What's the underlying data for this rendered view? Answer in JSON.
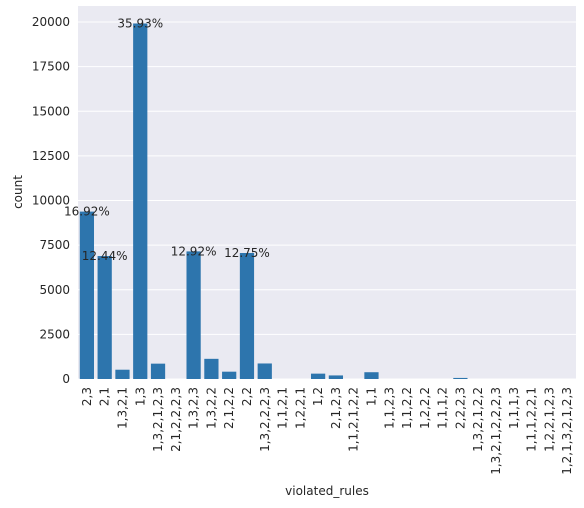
{
  "chart_data": {
    "type": "bar",
    "xlabel": "violated_rules",
    "ylabel": "count",
    "ylim": [
      0,
      20900
    ],
    "yticks": [
      0,
      2500,
      5000,
      7500,
      10000,
      12500,
      15000,
      17500,
      20000
    ],
    "grid": true,
    "bar_color": "#2d75ad",
    "background_color": "#eaeaf2",
    "categories": [
      "2,3",
      "2,1",
      "1,3,2,1",
      "1,3",
      "1,3,2,1,2,3",
      "2,1,2,2,2,3",
      "1,3,2,3",
      "1,3,2,2",
      "2,1,2,2",
      "2,2",
      "1,3,2,2,2,3",
      "1,1,2,1",
      "1,2,2,1",
      "1,2",
      "2,1,2,3",
      "1,1,2,1,2,2",
      "1,1",
      "1,1,2,3",
      "1,1,2,2",
      "1,2,2,2",
      "1,1,1,2",
      "2,2,2,3",
      "1,3,2,1,2,2",
      "1,3,2,1,2,2,2,3",
      "1,1,1,3",
      "1,1,1,2,2,1",
      "1,2,2,1,2,3",
      "1,2,1,3,2,1,2,3"
    ],
    "values": [
      9380,
      6890,
      520,
      19920,
      860,
      0,
      7150,
      1130,
      410,
      7060,
      870,
      0,
      0,
      300,
      200,
      0,
      380,
      0,
      0,
      0,
      0,
      60,
      0,
      0,
      0,
      0,
      0,
      0
    ],
    "labels": [
      "16.92%",
      "12.44%",
      "",
      "35.93%",
      "",
      "",
      "12.92%",
      "",
      "",
      "12.75%",
      "",
      "",
      "",
      "",
      "",
      "",
      "",
      "",
      "",
      "",
      "",
      "",
      "",
      "",
      "",
      "",
      "",
      ""
    ]
  }
}
